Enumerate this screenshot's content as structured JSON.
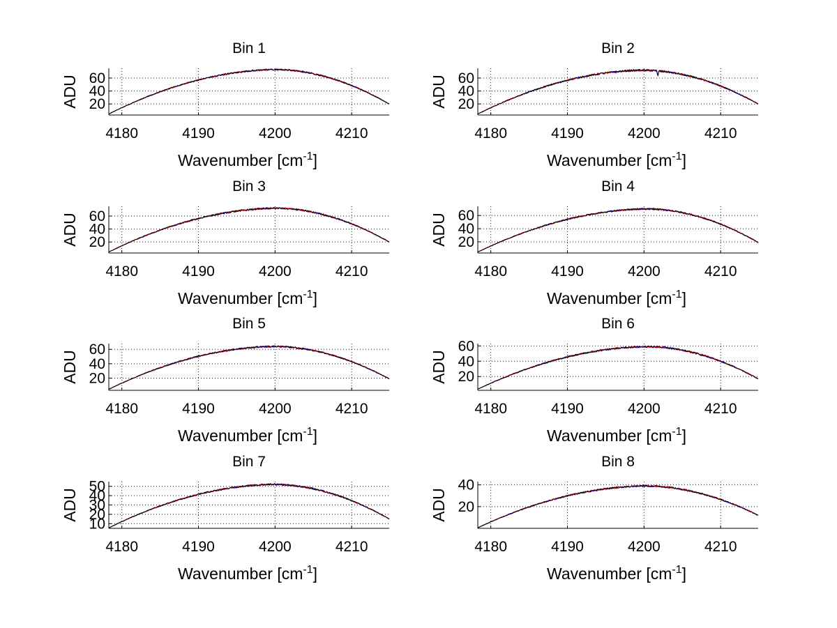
{
  "chart_data": [
    {
      "type": "line",
      "title": "Bin 1",
      "xlabel": "Wavenumber [cm",
      "xlabel_sup": "-1",
      "xlabel_end": "]",
      "ylabel": "ADU",
      "xlim": [
        4178.3,
        4214.9
      ],
      "ylim": [
        3,
        75
      ],
      "xticks": [
        4180,
        4190,
        4200,
        4210
      ],
      "yticks": [
        20,
        40,
        60
      ],
      "peak_x": 4200.2,
      "peak_y": 73,
      "left_y": 4.5,
      "right_y": 20,
      "noise": 1.2,
      "dip": null,
      "series": [
        {
          "name": "blue",
          "color": "#0000ff"
        },
        {
          "name": "red",
          "color": "#ff0000"
        },
        {
          "name": "black",
          "color": "#000000"
        }
      ]
    },
    {
      "type": "line",
      "title": "Bin 2",
      "xlabel": "Wavenumber [cm",
      "xlabel_sup": "-1",
      "xlabel_end": "]",
      "ylabel": "ADU",
      "xlim": [
        4178.3,
        4214.9
      ],
      "ylim": [
        3,
        75
      ],
      "xticks": [
        4180,
        4190,
        4200,
        4210
      ],
      "yticks": [
        20,
        40,
        60
      ],
      "peak_x": 4200.0,
      "peak_y": 72,
      "left_y": 4.5,
      "right_y": 20,
      "noise": 1.4,
      "dip": {
        "x": 4201.8,
        "depth": 10
      },
      "series": [
        {
          "name": "blue",
          "color": "#0000ff"
        },
        {
          "name": "red",
          "color": "#ff0000"
        },
        {
          "name": "black",
          "color": "#000000"
        }
      ]
    },
    {
      "type": "line",
      "title": "Bin 3",
      "xlabel": "Wavenumber [cm",
      "xlabel_sup": "-1",
      "xlabel_end": "]",
      "ylabel": "ADU",
      "xlim": [
        4178.3,
        4214.9
      ],
      "ylim": [
        3,
        75
      ],
      "xticks": [
        4180,
        4190,
        4200,
        4210
      ],
      "yticks": [
        20,
        40,
        60
      ],
      "peak_x": 4200.2,
      "peak_y": 72,
      "left_y": 4.5,
      "right_y": 20,
      "noise": 1.3,
      "dip": null,
      "series": [
        {
          "name": "blue",
          "color": "#0000ff"
        },
        {
          "name": "red",
          "color": "#ff0000"
        },
        {
          "name": "black",
          "color": "#000000"
        }
      ]
    },
    {
      "type": "line",
      "title": "Bin 4",
      "xlabel": "Wavenumber [cm",
      "xlabel_sup": "-1",
      "xlabel_end": "]",
      "ylabel": "ADU",
      "xlim": [
        4178.3,
        4214.9
      ],
      "ylim": [
        3,
        74
      ],
      "xticks": [
        4180,
        4190,
        4200,
        4210
      ],
      "yticks": [
        20,
        40,
        60
      ],
      "peak_x": 4200.5,
      "peak_y": 70,
      "left_y": 4.5,
      "right_y": 19,
      "noise": 1.2,
      "dip": null,
      "series": [
        {
          "name": "blue",
          "color": "#0000ff"
        },
        {
          "name": "red",
          "color": "#ff0000"
        },
        {
          "name": "black",
          "color": "#000000"
        }
      ]
    },
    {
      "type": "line",
      "title": "Bin 5",
      "xlabel": "Wavenumber [cm",
      "xlabel_sup": "-1",
      "xlabel_end": "]",
      "ylabel": "ADU",
      "xlim": [
        4178.3,
        4214.9
      ],
      "ylim": [
        3,
        68
      ],
      "xticks": [
        4180,
        4190,
        4200,
        4210
      ],
      "yticks": [
        20,
        40,
        60
      ],
      "peak_x": 4200.0,
      "peak_y": 64,
      "left_y": 4.5,
      "right_y": 19,
      "noise": 1.1,
      "dip": null,
      "series": [
        {
          "name": "blue",
          "color": "#0000ff"
        },
        {
          "name": "red",
          "color": "#ff0000"
        },
        {
          "name": "black",
          "color": "#000000"
        }
      ]
    },
    {
      "type": "line",
      "title": "Bin 6",
      "xlabel": "Wavenumber [cm",
      "xlabel_sup": "-1",
      "xlabel_end": "]",
      "ylabel": "ADU",
      "xlim": [
        4178.3,
        4214.9
      ],
      "ylim": [
        2,
        63
      ],
      "xticks": [
        4180,
        4190,
        4200,
        4210
      ],
      "yticks": [
        20,
        40,
        60
      ],
      "peak_x": 4200.5,
      "peak_y": 59,
      "left_y": 3.5,
      "right_y": 17,
      "noise": 1.2,
      "dip": null,
      "series": [
        {
          "name": "blue",
          "color": "#0000ff"
        },
        {
          "name": "red",
          "color": "#ff0000"
        },
        {
          "name": "black",
          "color": "#000000"
        }
      ]
    },
    {
      "type": "line",
      "title": "Bin 7",
      "xlabel": "Wavenumber [cm",
      "xlabel_sup": "-1",
      "xlabel_end": "]",
      "ylabel": "ADU",
      "xlim": [
        4178.3,
        4214.9
      ],
      "ylim": [
        5,
        55
      ],
      "xticks": [
        4180,
        4190,
        4200,
        4210
      ],
      "yticks": [
        10,
        20,
        30,
        40,
        50
      ],
      "peak_x": 4200.0,
      "peak_y": 52,
      "left_y": 5.5,
      "right_y": 15,
      "noise": 0.9,
      "dip": null,
      "series": [
        {
          "name": "blue",
          "color": "#0000ff"
        },
        {
          "name": "red",
          "color": "#ff0000"
        },
        {
          "name": "black",
          "color": "#000000"
        }
      ]
    },
    {
      "type": "line",
      "title": "Bin 8",
      "xlabel": "Wavenumber [cm",
      "xlabel_sup": "-1",
      "xlabel_end": "]",
      "ylabel": "ADU",
      "xlim": [
        4178.3,
        4214.9
      ],
      "ylim": [
        0,
        43
      ],
      "xticks": [
        4180,
        4190,
        4200,
        4210
      ],
      "yticks": [
        20,
        40
      ],
      "peak_x": 4200.3,
      "peak_y": 39,
      "left_y": 0.5,
      "right_y": 12,
      "noise": 0.8,
      "dip": null,
      "series": [
        {
          "name": "blue",
          "color": "#0000ff"
        },
        {
          "name": "red",
          "color": "#ff0000"
        },
        {
          "name": "black",
          "color": "#000000"
        }
      ]
    }
  ]
}
